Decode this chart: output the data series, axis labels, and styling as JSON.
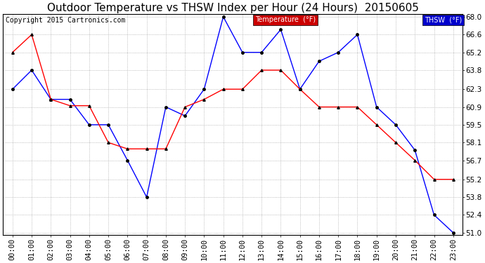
{
  "title": "Outdoor Temperature vs THSW Index per Hour (24 Hours)  20150605",
  "copyright": "Copyright 2015 Cartronics.com",
  "hours": [
    "00:00",
    "01:00",
    "02:00",
    "03:00",
    "04:00",
    "05:00",
    "06:00",
    "07:00",
    "08:00",
    "09:00",
    "10:00",
    "11:00",
    "12:00",
    "13:00",
    "14:00",
    "15:00",
    "16:00",
    "17:00",
    "18:00",
    "19:00",
    "20:00",
    "21:00",
    "22:00",
    "23:00"
  ],
  "thsw": [
    62.3,
    63.8,
    61.5,
    61.5,
    59.5,
    59.5,
    56.7,
    53.8,
    60.9,
    60.2,
    62.3,
    68.0,
    65.2,
    65.2,
    67.0,
    62.3,
    64.5,
    65.2,
    66.6,
    60.9,
    59.5,
    57.5,
    52.4,
    51.0
  ],
  "temperature": [
    65.2,
    66.6,
    61.5,
    61.0,
    61.0,
    58.1,
    57.6,
    57.6,
    57.6,
    60.9,
    61.5,
    62.3,
    62.3,
    63.8,
    63.8,
    62.3,
    60.9,
    60.9,
    60.9,
    59.5,
    58.1,
    56.7,
    55.2,
    55.2
  ],
  "ylim_min": 51.0,
  "ylim_max": 68.0,
  "yticks": [
    51.0,
    52.4,
    53.8,
    55.2,
    56.7,
    58.1,
    59.5,
    60.9,
    62.3,
    63.8,
    65.2,
    66.6,
    68.0
  ],
  "thsw_color": "#0000FF",
  "temp_color": "#FF0000",
  "bg_color": "#FFFFFF",
  "plot_bg_color": "#FFFFFF",
  "grid_color": "#AAAAAA",
  "thsw_label": "THSW  (°F)",
  "temp_label": "Temperature  (°F)",
  "title_fontsize": 11,
  "copyright_fontsize": 7,
  "tick_fontsize": 7.5,
  "legend_thsw_bg": "#0000CC",
  "legend_temp_bg": "#CC0000"
}
